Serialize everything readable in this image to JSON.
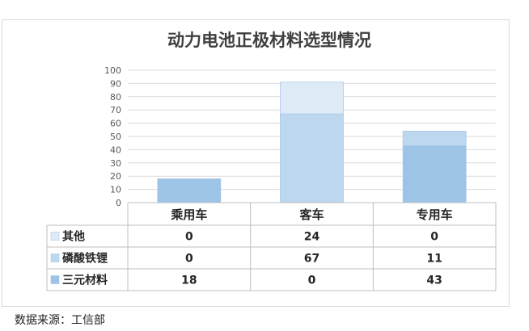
{
  "chart_data": {
    "type": "bar",
    "stacked": true,
    "title": "动力电池正极材料选型情况",
    "categories": [
      "乘用车",
      "客车",
      "专用车"
    ],
    "series": [
      {
        "name": "三元材料",
        "values": [
          18,
          0,
          43
        ],
        "color": "#9dc3e6"
      },
      {
        "name": "磷酸铁锂",
        "values": [
          0,
          67,
          11
        ],
        "color": "#bdd7ee"
      },
      {
        "name": "其他",
        "values": [
          0,
          24,
          0
        ],
        "color": "#deebf7"
      }
    ],
    "yticks": [
      "0",
      "10",
      "20",
      "30",
      "40",
      "50",
      "60",
      "70",
      "80",
      "90",
      "100"
    ],
    "ylim": [
      0,
      100
    ],
    "grid": true,
    "data_table": true,
    "table_rows": [
      {
        "label": "其他",
        "cells": [
          "0",
          "24",
          "0"
        ]
      },
      {
        "label": "磷酸铁锂",
        "cells": [
          "0",
          "67",
          "11"
        ]
      },
      {
        "label": "三元材料",
        "cells": [
          "18",
          "0",
          "43"
        ]
      }
    ]
  },
  "source_text": "数据来源：工信部"
}
